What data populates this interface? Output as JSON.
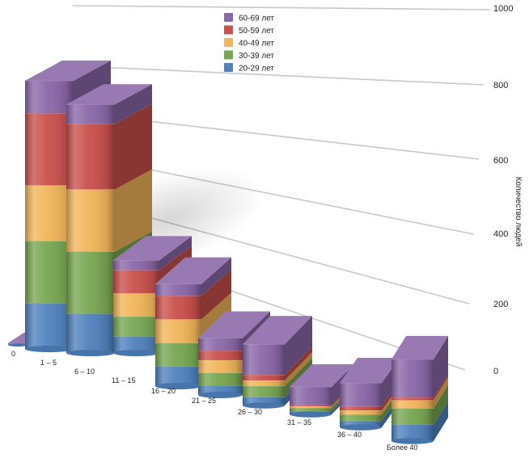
{
  "chart_data": {
    "type": "bar",
    "stacked": true,
    "perspective_3d": true,
    "ylabel": "Количество людей",
    "ylim": [
      0,
      1000
    ],
    "yticks": [
      "0",
      "200",
      "400",
      "600",
      "800",
      "1000"
    ],
    "categories": [
      "0",
      "1 – 5",
      "6 – 10",
      "11 – 15",
      "16 – 20",
      "21 – 25",
      "26 – 30",
      "31 – 35",
      "36 – 40",
      "Более 40"
    ],
    "series": [
      {
        "name": "20-29 лет",
        "color": "#4f81bd",
        "values": [
          10,
          140,
          120,
          50,
          50,
          30,
          30,
          20,
          30,
          60
        ]
      },
      {
        "name": "30-39 лет",
        "color": "#77a651",
        "values": [
          10,
          190,
          190,
          60,
          60,
          40,
          40,
          20,
          30,
          60
        ]
      },
      {
        "name": "40-49 лет",
        "color": "#f2b55a",
        "values": [
          10,
          170,
          190,
          70,
          60,
          40,
          20,
          10,
          20,
          30
        ]
      },
      {
        "name": "50-59 лет",
        "color": "#c94f4b",
        "values": [
          10,
          220,
          200,
          70,
          60,
          30,
          20,
          10,
          20,
          10
        ]
      },
      {
        "name": "60-69 лет",
        "color": "#8a67a8",
        "values": [
          20,
          100,
          60,
          30,
          30,
          40,
          110,
          110,
          110,
          140
        ]
      }
    ],
    "legend": "top-center",
    "grid": true
  }
}
